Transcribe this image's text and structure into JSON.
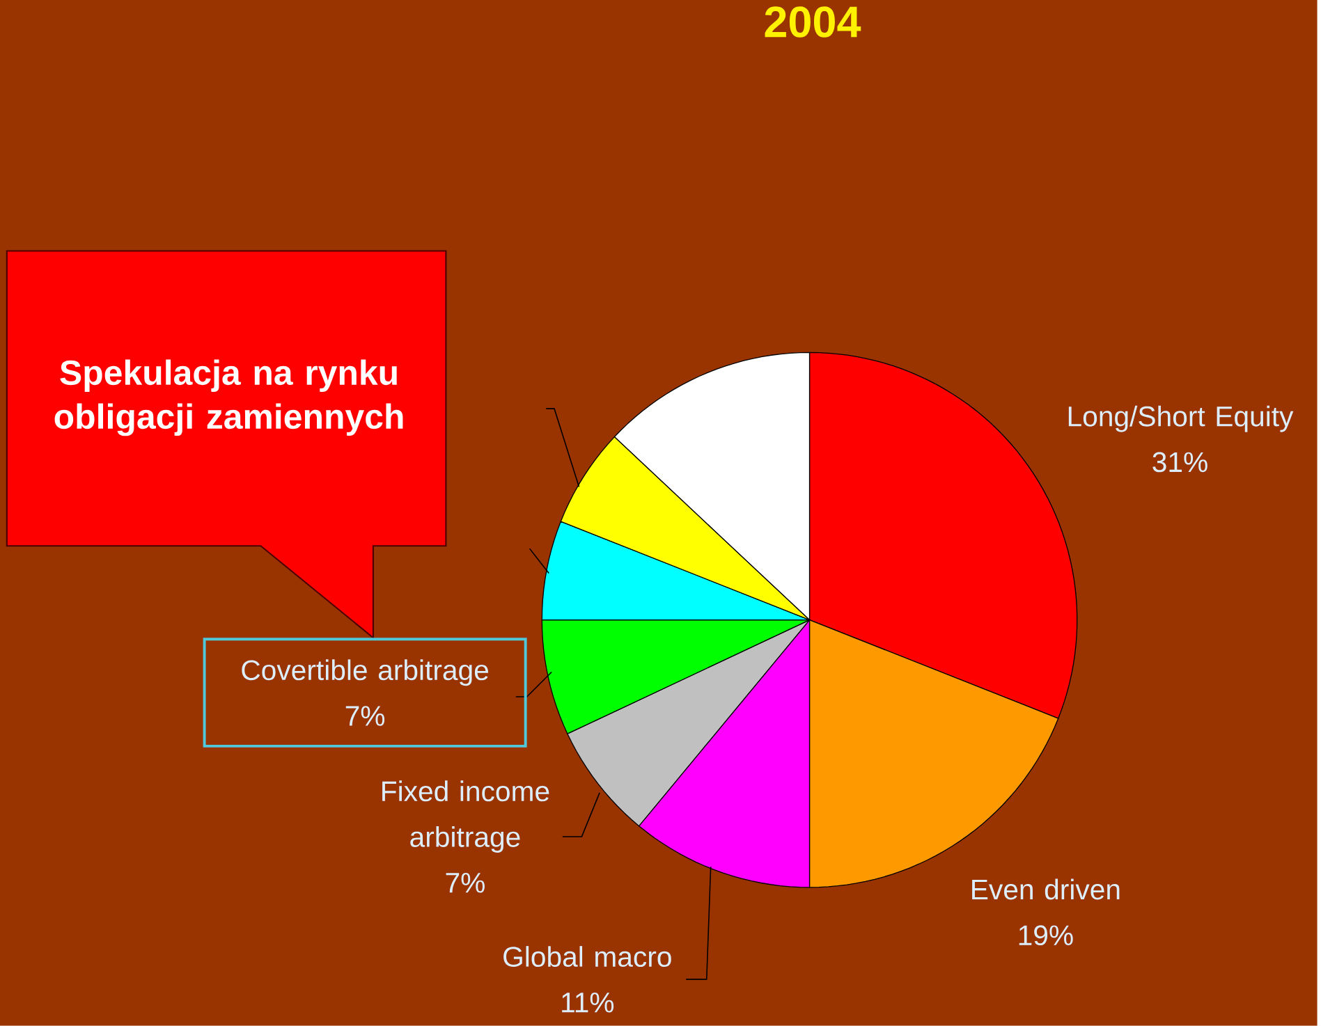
{
  "chart_data": {
    "type": "pie",
    "title": "2004",
    "categories": [
      "Long/Short Equity",
      "Even driven",
      "Global macro",
      "Fixed income arbitrage",
      "Covertible arbitrage",
      null,
      null,
      null
    ],
    "values": [
      31,
      19,
      11,
      7,
      7,
      6,
      6,
      13
    ],
    "value_labels": [
      "31%",
      "19%",
      "11%",
      "7%",
      "7%",
      null,
      null,
      null
    ],
    "colors": [
      "#ff0000",
      "#ff9900",
      "#ff00ff",
      "#c0c0c0",
      "#00ff00",
      "#00ffff",
      "#ffff00",
      "#ffffff"
    ],
    "annotations": [
      "Spekulacja na rynku obligacji zamiennych"
    ]
  }
}
